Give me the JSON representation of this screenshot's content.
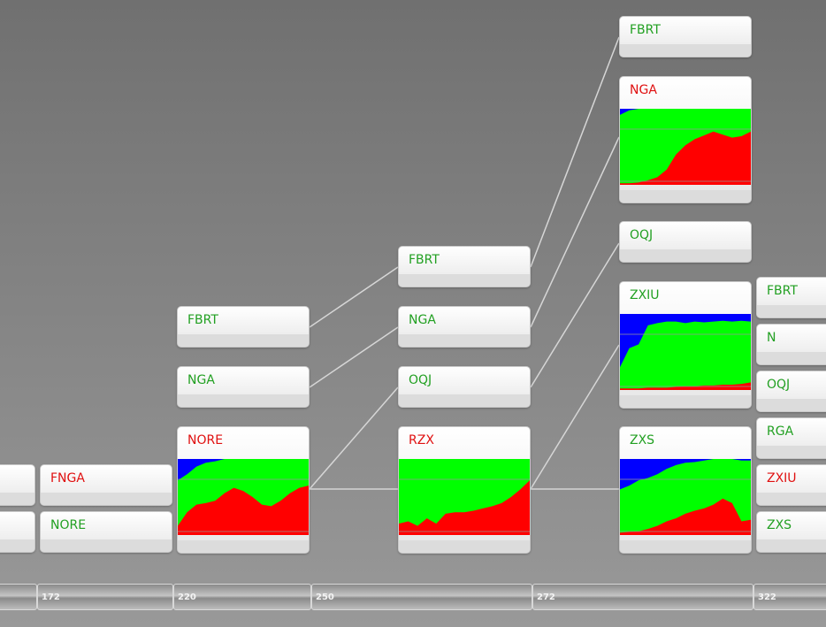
{
  "colors": {
    "blue": "#0000ff",
    "green": "#00ff00",
    "red": "#ff0000"
  },
  "nodes": {
    "left_a": {
      "label": "",
      "color": "green"
    },
    "left_b": {
      "label": "",
      "color": "green"
    },
    "fnga": {
      "label": "FNGA",
      "color": "red"
    },
    "nore_small": {
      "label": "NORE",
      "color": "green"
    },
    "c2_fbrt": {
      "label": "FBRT",
      "color": "green"
    },
    "c2_nga": {
      "label": "NGA",
      "color": "green"
    },
    "c2_nore": {
      "label": "NORE",
      "color": "red"
    },
    "c3_fbrt": {
      "label": "FBRT",
      "color": "green"
    },
    "c3_nga": {
      "label": "NGA",
      "color": "green"
    },
    "c3_oqj": {
      "label": "OQJ",
      "color": "green"
    },
    "c3_rzx": {
      "label": "RZX",
      "color": "red"
    },
    "c4_fbrt": {
      "label": "FBRT",
      "color": "green"
    },
    "c4_nga": {
      "label": "NGA",
      "color": "red"
    },
    "c4_oqj": {
      "label": "OQJ",
      "color": "green"
    },
    "c4_zxiu": {
      "label": "ZXIU",
      "color": "green"
    },
    "c4_zxs": {
      "label": "ZXS",
      "color": "green"
    },
    "c5_fbrt": {
      "label": "FBRT",
      "color": "green"
    },
    "c5_n": {
      "label": "N",
      "color": "green"
    },
    "c5_oqj": {
      "label": "OQJ",
      "color": "green"
    },
    "c5_rga": {
      "label": "RGA",
      "color": "green"
    },
    "c5_zxiu": {
      "label": "ZXIU",
      "color": "red"
    },
    "c5_zxs": {
      "label": "ZXS",
      "color": "green"
    }
  },
  "timeline": {
    "ticks": [
      {
        "label": ""
      },
      {
        "label": "172"
      },
      {
        "label": "220"
      },
      {
        "label": "250"
      },
      {
        "label": "272"
      },
      {
        "label": "322"
      }
    ]
  },
  "chart_data": [
    {
      "node": "NORE",
      "type": "area",
      "x": [
        0,
        1,
        2,
        3,
        4,
        5,
        6,
        7,
        8,
        9,
        10,
        11,
        12,
        13,
        14
      ],
      "series": [
        {
          "values": [
            0.12,
            0.3,
            0.4,
            0.42,
            0.45,
            0.55,
            0.62,
            0.58,
            0.5,
            0.4,
            0.38,
            0.45,
            0.55,
            0.62,
            0.65
          ]
        },
        {
          "values": [
            0.72,
            0.8,
            0.9,
            0.95,
            0.97,
            1.0,
            1.0,
            1.0,
            1.0,
            1.0,
            1.0,
            1.0,
            1.0,
            1.0,
            1.0
          ]
        }
      ]
    },
    {
      "node": "RZX",
      "type": "area",
      "x": [
        0,
        1,
        2,
        3,
        4,
        5,
        6,
        7,
        8,
        9,
        10,
        11,
        12,
        13,
        14
      ],
      "series": [
        {
          "values": [
            0.15,
            0.18,
            0.12,
            0.22,
            0.15,
            0.28,
            0.3,
            0.3,
            0.32,
            0.35,
            0.38,
            0.42,
            0.5,
            0.6,
            0.72
          ]
        },
        {
          "values": [
            1.0,
            1.0,
            1.0,
            1.0,
            1.0,
            1.0,
            1.0,
            1.0,
            1.0,
            1.0,
            1.0,
            1.0,
            1.0,
            1.0,
            1.0
          ]
        }
      ]
    },
    {
      "node": "NGA",
      "type": "area",
      "x": [
        0,
        1,
        2,
        3,
        4,
        5,
        6,
        7,
        8,
        9,
        10,
        11,
        12,
        13,
        14
      ],
      "series": [
        {
          "values": [
            0.02,
            0.02,
            0.03,
            0.06,
            0.1,
            0.2,
            0.4,
            0.52,
            0.6,
            0.65,
            0.7,
            0.66,
            0.62,
            0.64,
            0.7
          ]
        },
        {
          "values": [
            0.92,
            0.98,
            1.0,
            1.0,
            1.0,
            1.0,
            1.0,
            1.0,
            1.0,
            1.0,
            1.0,
            1.0,
            1.0,
            1.0,
            1.0
          ]
        }
      ]
    },
    {
      "node": "ZXIU",
      "type": "area",
      "x": [
        0,
        1,
        2,
        3,
        4,
        5,
        6,
        7,
        8,
        9,
        10,
        11,
        12,
        13,
        14
      ],
      "series": [
        {
          "values": [
            0.02,
            0.02,
            0.02,
            0.03,
            0.03,
            0.03,
            0.04,
            0.05,
            0.05,
            0.06,
            0.06,
            0.07,
            0.07,
            0.08,
            0.1
          ]
        },
        {
          "values": [
            0.3,
            0.55,
            0.6,
            0.85,
            0.88,
            0.9,
            0.9,
            0.88,
            0.9,
            0.89,
            0.9,
            0.91,
            0.9,
            0.91,
            0.9
          ]
        }
      ]
    },
    {
      "node": "ZXS",
      "type": "area",
      "x": [
        0,
        1,
        2,
        3,
        4,
        5,
        6,
        7,
        8,
        9,
        10,
        11,
        12,
        13,
        14
      ],
      "series": [
        {
          "values": [
            0.03,
            0.04,
            0.05,
            0.08,
            0.12,
            0.18,
            0.22,
            0.28,
            0.32,
            0.35,
            0.4,
            0.48,
            0.42,
            0.18,
            0.2
          ]
        },
        {
          "values": [
            0.6,
            0.65,
            0.72,
            0.75,
            0.8,
            0.87,
            0.92,
            0.95,
            0.96,
            0.98,
            1.0,
            1.0,
            1.0,
            0.98,
            0.98
          ]
        }
      ]
    }
  ]
}
